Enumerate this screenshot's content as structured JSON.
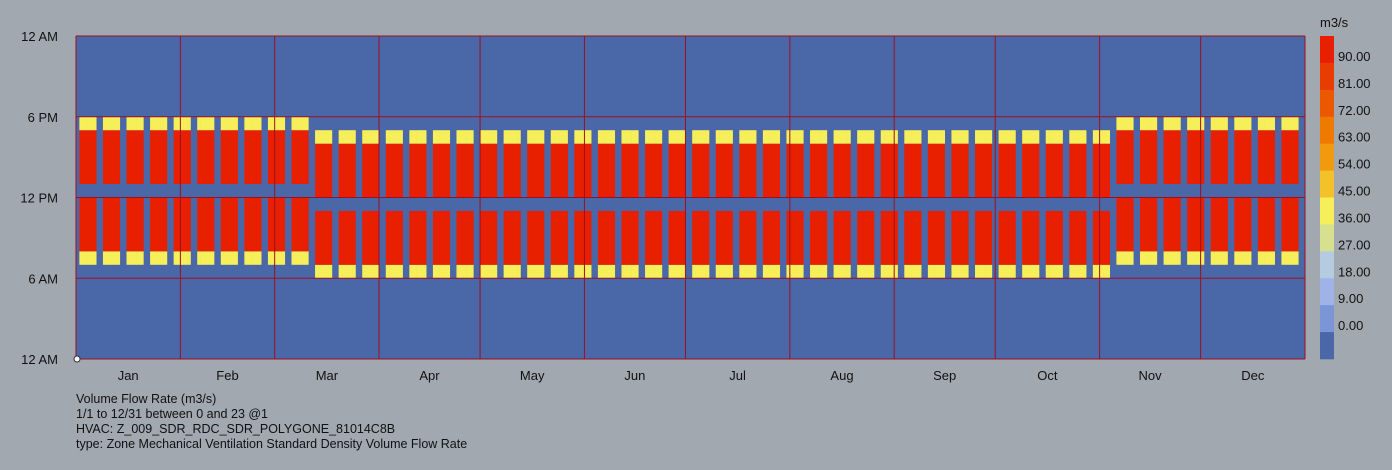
{
  "chart_data": {
    "type": "heatmap",
    "unit": "m3/s",
    "y_ticks": [
      "12 AM",
      "6 PM",
      "12 PM",
      "6 AM",
      "12 AM"
    ],
    "x_categories": [
      "Jan",
      "Feb",
      "Mar",
      "Apr",
      "May",
      "Jun",
      "Jul",
      "Aug",
      "Sep",
      "Oct",
      "Nov",
      "Dec"
    ],
    "legend_values": [
      "90.00",
      "81.00",
      "72.00",
      "63.00",
      "54.00",
      "45.00",
      "36.00",
      "27.00",
      "18.00",
      "9.00",
      "0.00"
    ],
    "legend_colors": [
      "#e82000",
      "#e83c00",
      "#eb5800",
      "#ee7a00",
      "#f19a10",
      "#f3c22a",
      "#f6ef5a",
      "#d6e08e",
      "#b5cbe0",
      "#a0b3e8",
      "#7a96d6",
      "#4a68a8"
    ],
    "background_value_color": "#4a68a8",
    "occupied_color": "#e82000",
    "transition_color": "#f6ef5a",
    "grid_color": "#9b1020",
    "pattern": {
      "weekdays_only": true,
      "standard_time": {
        "start_hour": 7,
        "end_hour": 18,
        "lunch_start": 12,
        "lunch_end": 13,
        "peak_value": 90,
        "shoulder_value": 45
      },
      "dst_period": {
        "start": "Mar 13",
        "end": "Nov 6",
        "hour_shift": -1
      }
    },
    "caption": [
      "Volume Flow Rate (m3/s)",
      "1/1 to 12/31 between 0 and 23 @1",
      "HVAC: Z_009_SDR_RDC_SDR_POLYGONE_81014C8B",
      "type: Zone Mechanical Ventilation Standard Density Volume Flow Rate"
    ]
  }
}
